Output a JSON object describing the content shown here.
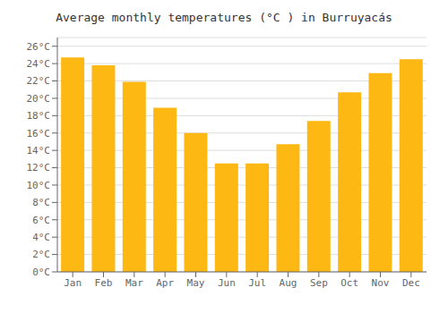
{
  "chart_data": {
    "type": "bar",
    "title": "Average monthly temperatures (°C ) in Burruyacás",
    "categories": [
      "Jan",
      "Feb",
      "Mar",
      "Apr",
      "May",
      "Jun",
      "Jul",
      "Aug",
      "Sep",
      "Oct",
      "Nov",
      "Dec"
    ],
    "values": [
      24.7,
      23.8,
      21.9,
      18.9,
      16.0,
      12.5,
      12.5,
      14.7,
      17.4,
      20.7,
      22.9,
      24.5
    ],
    "color": "#FDB813",
    "ylim": [
      0,
      27
    ],
    "yticks": [
      {
        "value": 0,
        "label": "0°C"
      },
      {
        "value": 2,
        "label": "2°C"
      },
      {
        "value": 4,
        "label": "4°C"
      },
      {
        "value": 6,
        "label": "6°C"
      },
      {
        "value": 8,
        "label": "8°C"
      },
      {
        "value": 10,
        "label": "10°C"
      },
      {
        "value": 12,
        "label": "12°C"
      },
      {
        "value": 14,
        "label": "14°C"
      },
      {
        "value": 16,
        "label": "16°C"
      },
      {
        "value": 18,
        "label": "18°C"
      },
      {
        "value": 20,
        "label": "20°C"
      },
      {
        "value": 22,
        "label": "22°C"
      },
      {
        "value": 24,
        "label": "24°C"
      },
      {
        "value": 26,
        "label": "26°C"
      }
    ],
    "grid": true
  }
}
